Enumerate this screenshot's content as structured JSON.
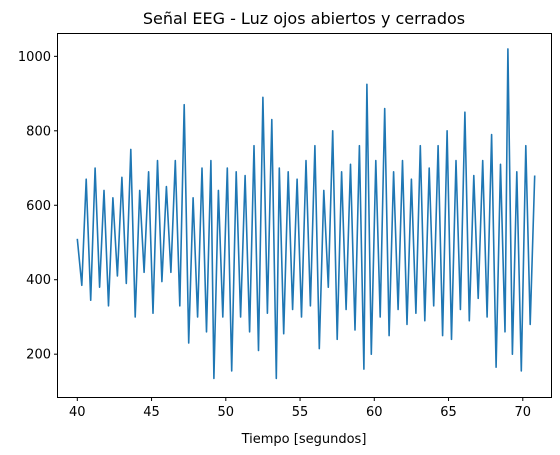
{
  "chart_data": {
    "type": "line",
    "title": "Señal EEG - Luz ojos abiertos y cerrados",
    "xlabel": "Tiempo [segundos]",
    "ylabel": "",
    "xlim": [
      38.7,
      71.9
    ],
    "ylim": [
      85,
      1060
    ],
    "xticks": [
      40,
      45,
      50,
      55,
      60,
      65,
      70
    ],
    "yticks": [
      200,
      400,
      600,
      800,
      1000
    ],
    "grid": false,
    "color": "#1f77b4",
    "series": [
      {
        "x": [
          40.0,
          40.3,
          40.6,
          40.9,
          41.2,
          41.5,
          41.8,
          42.1,
          42.4,
          42.7,
          43.0,
          43.3,
          43.6,
          43.9,
          44.2,
          44.5,
          44.8,
          45.1,
          45.4,
          45.7,
          46.0,
          46.3,
          46.6,
          46.9,
          47.2,
          47.5,
          47.8,
          48.1,
          48.4,
          48.7,
          49.0,
          49.2,
          49.5,
          49.8,
          50.1,
          50.4,
          50.7,
          51.0,
          51.3,
          51.6,
          51.9,
          52.2,
          52.5,
          52.8,
          53.1,
          53.4,
          53.6,
          53.9,
          54.2,
          54.5,
          54.8,
          55.1,
          55.4,
          55.7,
          56.0,
          56.3,
          56.6,
          56.9,
          57.2,
          57.5,
          57.8,
          58.1,
          58.4,
          58.7,
          59.0,
          59.3,
          59.5,
          59.8,
          60.1,
          60.4,
          60.7,
          61.0,
          61.3,
          61.6,
          61.9,
          62.2,
          62.5,
          62.8,
          63.1,
          63.4,
          63.7,
          64.0,
          64.3,
          64.6,
          64.9,
          65.2,
          65.5,
          65.8,
          66.1,
          66.4,
          66.7,
          67.0,
          67.3,
          67.6,
          67.9,
          68.2,
          68.5,
          68.8,
          69.0,
          69.3,
          69.6,
          69.9,
          70.2,
          70.5,
          70.8
        ],
        "values": [
          510,
          385,
          670,
          345,
          700,
          380,
          640,
          330,
          620,
          410,
          675,
          390,
          750,
          300,
          640,
          420,
          690,
          310,
          720,
          395,
          650,
          420,
          720,
          330,
          870,
          230,
          620,
          300,
          700,
          260,
          720,
          135,
          640,
          300,
          700,
          155,
          690,
          300,
          680,
          260,
          760,
          210,
          890,
          310,
          830,
          135,
          700,
          255,
          690,
          320,
          670,
          300,
          720,
          330,
          760,
          215,
          640,
          380,
          800,
          240,
          690,
          320,
          710,
          265,
          760,
          160,
          925,
          200,
          720,
          300,
          860,
          250,
          690,
          320,
          720,
          280,
          670,
          310,
          760,
          290,
          700,
          330,
          760,
          250,
          800,
          240,
          720,
          320,
          850,
          290,
          680,
          350,
          720,
          300,
          790,
          165,
          710,
          260,
          1020,
          200,
          690,
          155,
          760,
          280,
          680
        ]
      }
    ]
  }
}
